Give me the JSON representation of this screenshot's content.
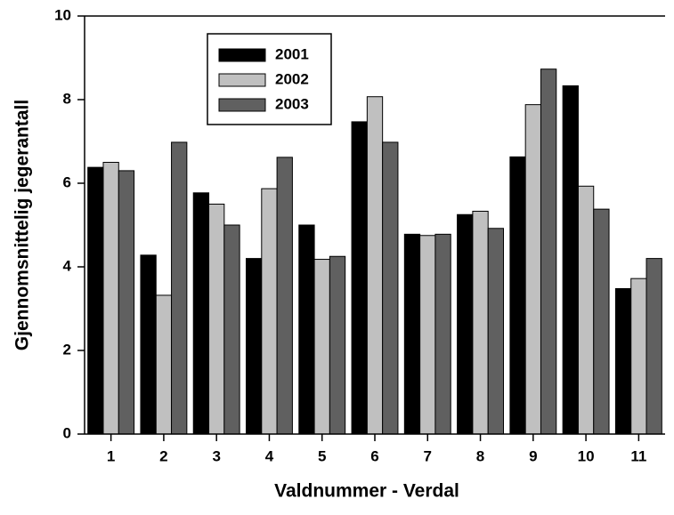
{
  "chart_data": {
    "type": "bar",
    "x_label": "Valdnummer - Verdal",
    "y_label": "Gjennomsnittelig jegerantall",
    "categories": [
      "1",
      "2",
      "3",
      "4",
      "5",
      "6",
      "7",
      "8",
      "9",
      "10",
      "11"
    ],
    "series": [
      {
        "name": "2001",
        "color": "#000000",
        "values": [
          6.38,
          4.28,
          5.77,
          4.2,
          5.0,
          7.47,
          4.78,
          5.25,
          6.63,
          8.33,
          3.48
        ]
      },
      {
        "name": "2002",
        "color": "#c0c0c0",
        "values": [
          6.5,
          3.32,
          5.5,
          5.87,
          4.18,
          8.07,
          4.75,
          5.33,
          7.88,
          5.93,
          3.72
        ]
      },
      {
        "name": "2003",
        "color": "#606060",
        "values": [
          6.3,
          6.98,
          5.0,
          6.62,
          4.25,
          6.98,
          4.78,
          4.92,
          8.73,
          5.38,
          4.2
        ]
      }
    ],
    "ylim": [
      0,
      10
    ],
    "yticks": [
      0,
      2,
      4,
      6,
      8,
      10
    ],
    "legend": "upper left"
  }
}
